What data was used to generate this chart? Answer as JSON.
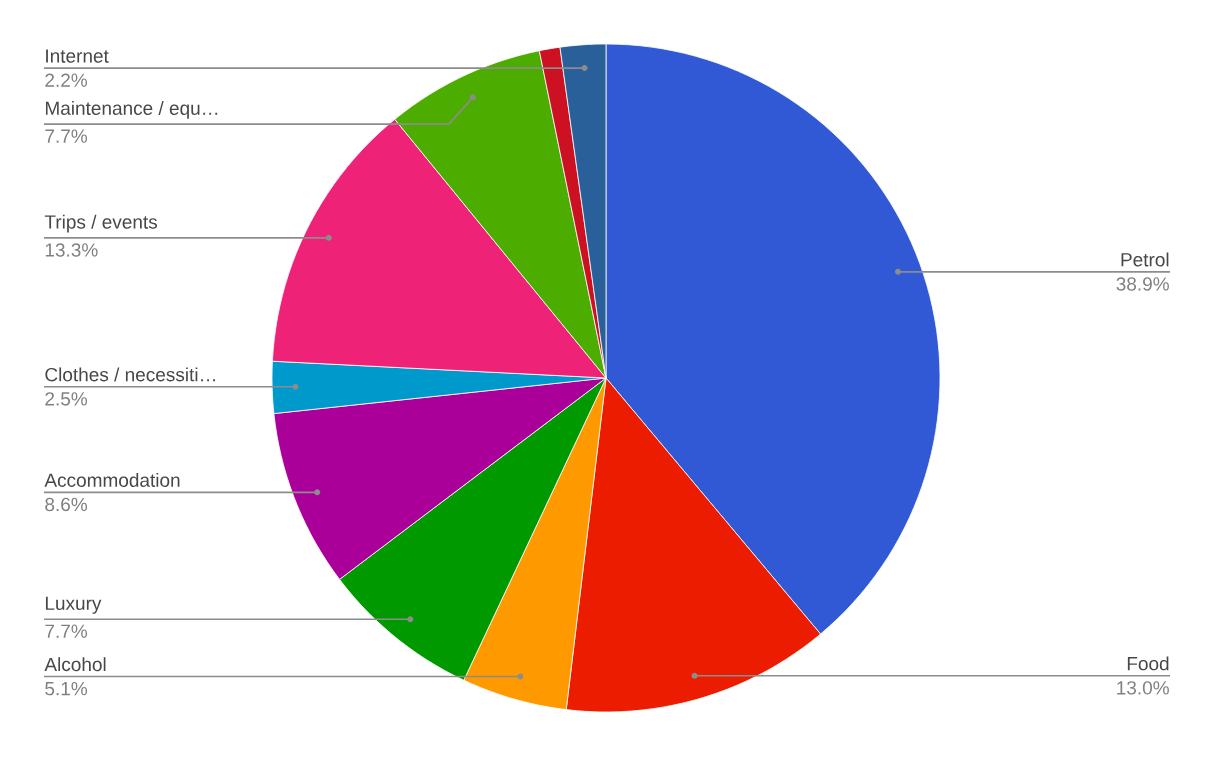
{
  "chart_data": {
    "type": "pie",
    "categories": [
      "Petrol",
      "Food",
      "Alcohol",
      "Luxury",
      "Accommodation",
      "Clothes / necessiti…",
      "Trips / events",
      "Maintenance / equ…",
      null,
      "Internet"
    ],
    "values": [
      38.9,
      13.0,
      5.1,
      7.7,
      8.6,
      2.5,
      13.3,
      7.7,
      1.0,
      2.2
    ],
    "value_labels": [
      "38.9%",
      "13.0%",
      "5.1%",
      "7.7%",
      "8.6%",
      "2.5%",
      "13.3%",
      "7.7%",
      null,
      "2.2%"
    ],
    "colors": [
      "#3259d5",
      "#ec1c00",
      "#ff9900",
      "#009900",
      "#aa0099",
      "#0099cc",
      "#ee2277",
      "#4cad00",
      "#cc1122",
      "#2a6099"
    ]
  }
}
